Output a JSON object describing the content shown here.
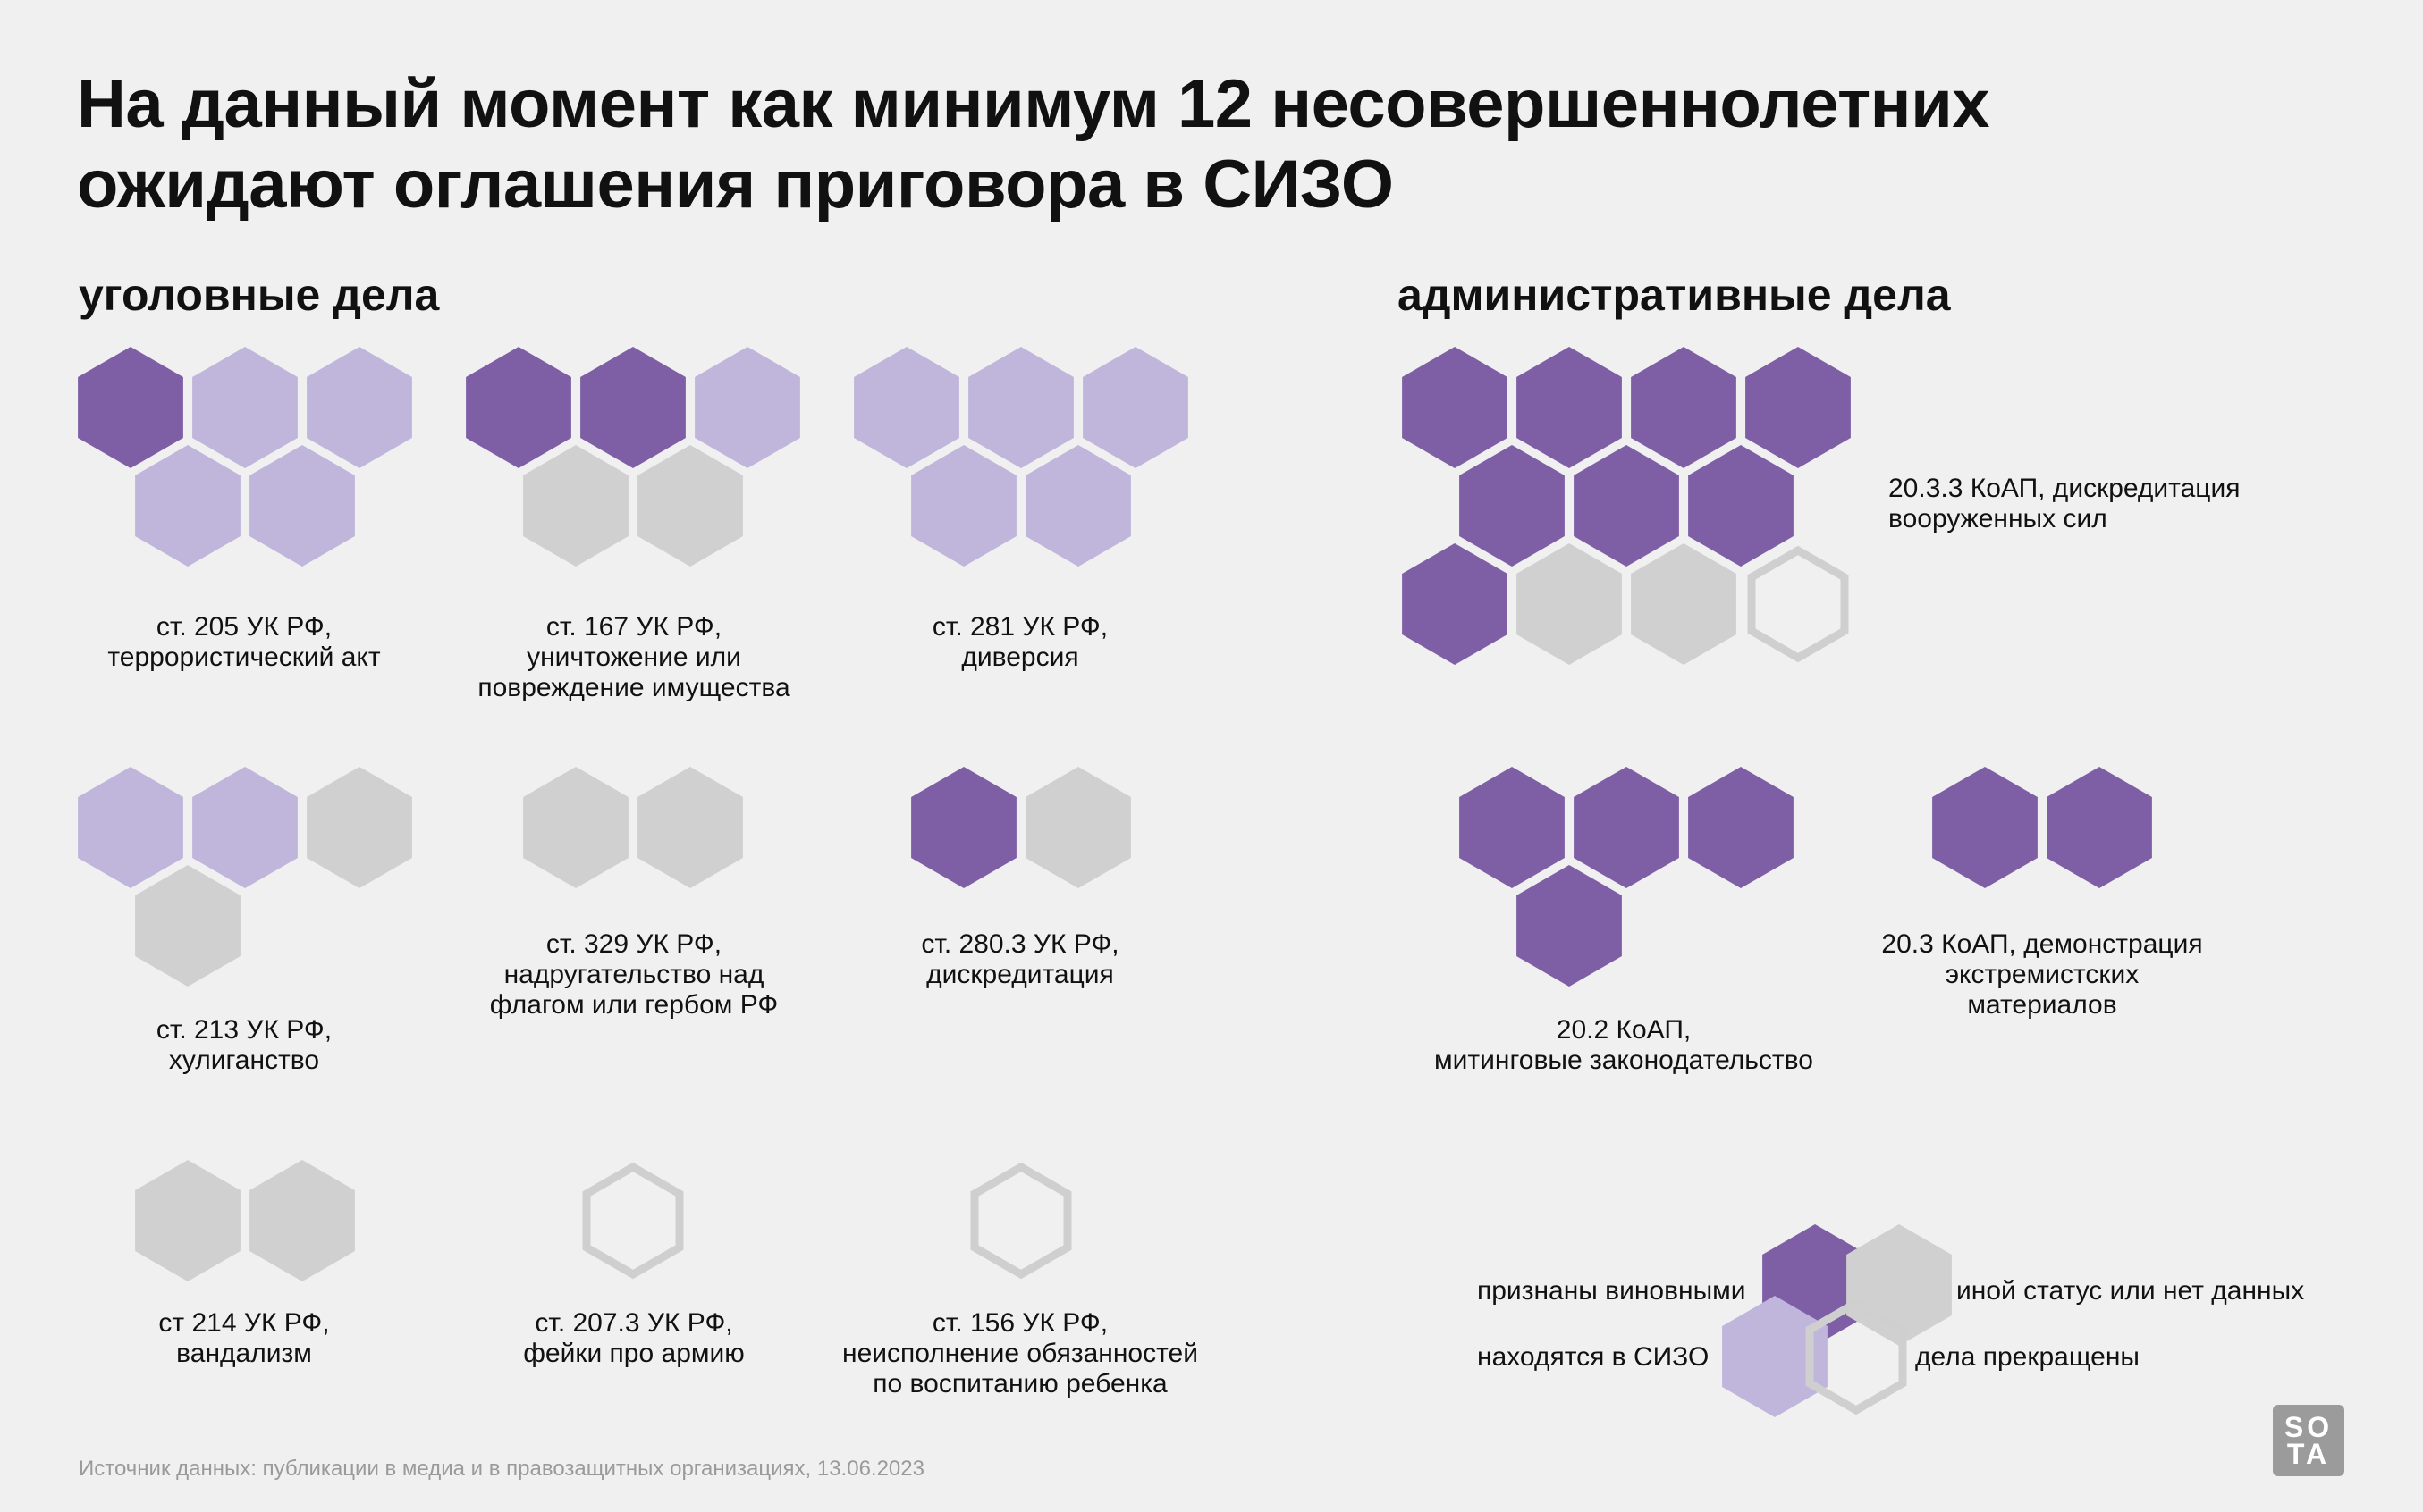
{
  "title_lines": [
    "На данный момент как минимум 12 несовершеннолетних",
    "ожидают оглашения приговора в СИЗО"
  ],
  "sections": {
    "criminal": "уголовные дела",
    "administrative": "административные дела"
  },
  "colors": {
    "convicted": "#7e5fa6",
    "in_detention": "#c0b6dc",
    "other": "#d0d0d0",
    "dropped_outline": "#cfcfcf",
    "background": "#f0f0f0"
  },
  "legend": {
    "convicted": "признаны виновными",
    "in_detention": "находятся в СИЗО",
    "other": "иной статус или нет данных",
    "dropped": "дела прекращены"
  },
  "source": "Источник данных: публикации в медиа и в правозащитных организациях, 13.06.2023",
  "logo": [
    "SO",
    "TA"
  ],
  "chart_data": {
    "type": "hexagon pictogram",
    "unit": "1 hexagon = 1 minor",
    "groups": [
      {
        "id": "art205",
        "section": "criminal",
        "label_lines": [
          "ст. 205 УК РФ,",
          "террористический акт"
        ],
        "convicted": 1,
        "in_detention": 4,
        "other": 0,
        "dropped": 0
      },
      {
        "id": "art167",
        "section": "criminal",
        "label_lines": [
          "ст. 167 УК РФ,",
          "уничтожение или",
          "повреждение имущества"
        ],
        "convicted": 2,
        "in_detention": 1,
        "other": 2,
        "dropped": 0
      },
      {
        "id": "art281",
        "section": "criminal",
        "label_lines": [
          "ст. 281 УК РФ,",
          "диверсия"
        ],
        "convicted": 0,
        "in_detention": 5,
        "other": 0,
        "dropped": 0
      },
      {
        "id": "art213",
        "section": "criminal",
        "label_lines": [
          "ст. 213 УК РФ,",
          "хулиганство"
        ],
        "convicted": 0,
        "in_detention": 2,
        "other": 2,
        "dropped": 0
      },
      {
        "id": "art329",
        "section": "criminal",
        "label_lines": [
          "ст. 329 УК РФ,",
          "надругательство над",
          "флагом или гербом РФ"
        ],
        "convicted": 0,
        "in_detention": 0,
        "other": 2,
        "dropped": 0
      },
      {
        "id": "art280_3",
        "section": "criminal",
        "label_lines": [
          "ст. 280.3 УК РФ,",
          "дискредитация"
        ],
        "convicted": 1,
        "in_detention": 0,
        "other": 1,
        "dropped": 0
      },
      {
        "id": "art214",
        "section": "criminal",
        "label_lines": [
          "ст 214 УК РФ,",
          "вандализм"
        ],
        "convicted": 0,
        "in_detention": 0,
        "other": 2,
        "dropped": 0
      },
      {
        "id": "art207_3",
        "section": "criminal",
        "label_lines": [
          "ст. 207.3 УК РФ,",
          "фейки про армию"
        ],
        "convicted": 0,
        "in_detention": 0,
        "other": 0,
        "dropped": 1
      },
      {
        "id": "art156",
        "section": "criminal",
        "label_lines": [
          "ст. 156 УК РФ,",
          "неисполнение обязанностей",
          "по воспитанию ребенка"
        ],
        "convicted": 0,
        "in_detention": 0,
        "other": 0,
        "dropped": 1
      },
      {
        "id": "koap20_3_3",
        "section": "administrative",
        "label_lines": [
          "20.3.3 КоАП, дискредитация",
          "вооруженных сил"
        ],
        "convicted": 8,
        "in_detention": 0,
        "other": 2,
        "dropped": 1
      },
      {
        "id": "koap20_2",
        "section": "administrative",
        "label_lines": [
          "20.2 КоАП,",
          "митинговые законодательство"
        ],
        "convicted": 4,
        "in_detention": 0,
        "other": 0,
        "dropped": 0
      },
      {
        "id": "koap20_3",
        "section": "administrative",
        "label_lines": [
          "20.3 КоАП, демонстрация",
          "экстремистских",
          "материалов"
        ],
        "convicted": 2,
        "in_detention": 0,
        "other": 0,
        "dropped": 0
      }
    ]
  }
}
